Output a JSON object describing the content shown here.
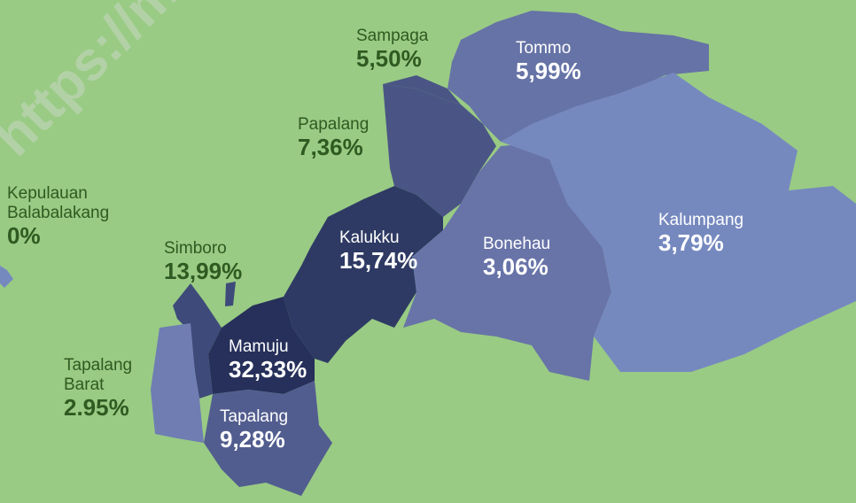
{
  "watermark": "https://mamuju",
  "regions": [
    {
      "name": "Sampaga",
      "value": 5.5,
      "label": "5,50%",
      "color": "#4a5585"
    },
    {
      "name": "Tommo",
      "value": 5.99,
      "label": "5,99%",
      "color": "#6673a6"
    },
    {
      "name": "Papalang",
      "value": 7.36,
      "label": "7,36%",
      "color": "#4a5585"
    },
    {
      "name": "Kepulauan Balabalakang",
      "value": 0,
      "label": "0%",
      "color": "#7689bf"
    },
    {
      "name": "Kalukku",
      "value": 15.74,
      "label": "15,74%",
      "color": "#2e3a63"
    },
    {
      "name": "Bonehau",
      "value": 3.06,
      "label": "3,06%",
      "color": "#6874a8"
    },
    {
      "name": "Kalumpang",
      "value": 3.79,
      "label": "3,79%",
      "color": "#7689bf"
    },
    {
      "name": "Simboro",
      "value": 13.99,
      "label": "13,99%",
      "color": "#3e4a7a"
    },
    {
      "name": "Mamuju",
      "value": 32.33,
      "label": "32,33%",
      "color": "#26305a"
    },
    {
      "name": "Tapalang Barat",
      "value": 2.95,
      "label": "2.95%",
      "color": "#6f7db3"
    },
    {
      "name": "Tapalang",
      "value": 9.28,
      "label": "9,28%",
      "color": "#525d8f"
    }
  ]
}
